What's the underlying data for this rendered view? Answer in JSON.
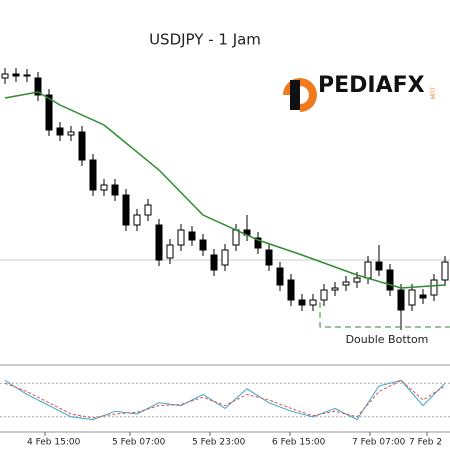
{
  "chart_data": {
    "type": "candlestick",
    "title": "USDJPY - 1 Jam",
    "brand": "PEDIAFX",
    "brand_suffix": ".COM",
    "annotation": "Double Bottom",
    "annotation_level": 38,
    "price_line": 105,
    "x_labels": [
      "4 Feb 15:00",
      "5 Feb 07:00",
      "5 Feb 23:00",
      "6 Feb 15:00",
      "7 Feb 07:00",
      "7 Feb 2"
    ],
    "ylim": [
      0,
      365
    ],
    "open": [
      287,
      291,
      289,
      287,
      270,
      237,
      230,
      233,
      205,
      175,
      180,
      170,
      140,
      150,
      140,
      107,
      120,
      133,
      125,
      110,
      100,
      120,
      135,
      127,
      115,
      97,
      85,
      65,
      60,
      65,
      75,
      80,
      83,
      87,
      103,
      95,
      75,
      60,
      70,
      70,
      85
    ],
    "close": [
      291,
      289,
      290,
      270,
      235,
      230,
      233,
      205,
      175,
      180,
      170,
      140,
      150,
      160,
      105,
      120,
      135,
      125,
      115,
      95,
      115,
      135,
      130,
      117,
      100,
      80,
      65,
      60,
      65,
      75,
      77,
      83,
      87,
      103,
      95,
      75,
      55,
      75,
      67,
      85,
      103
    ],
    "high": [
      297,
      297,
      296,
      293,
      276,
      243,
      239,
      239,
      211,
      186,
      186,
      176,
      156,
      166,
      146,
      126,
      141,
      139,
      131,
      116,
      121,
      141,
      150,
      133,
      121,
      103,
      91,
      71,
      71,
      81,
      83,
      89,
      93,
      109,
      120,
      101,
      81,
      81,
      76,
      91,
      109
    ],
    "low": [
      281,
      283,
      283,
      264,
      229,
      224,
      224,
      199,
      169,
      169,
      164,
      134,
      134,
      144,
      99,
      101,
      114,
      119,
      109,
      89,
      94,
      114,
      124,
      111,
      94,
      74,
      59,
      54,
      54,
      59,
      69,
      74,
      77,
      81,
      89,
      69,
      35,
      54,
      61,
      64,
      79
    ],
    "up_color": "#ffffff",
    "down_color": "#000000",
    "ma": {
      "color": "#2e8b2e",
      "x": [
        0,
        3,
        5,
        9,
        14,
        18,
        23,
        27,
        32,
        36,
        40
      ],
      "values": [
        267,
        273,
        260,
        240,
        195,
        150,
        125,
        110,
        90,
        77,
        80
      ]
    },
    "oscillator": {
      "ylim": [
        0,
        100
      ],
      "levels": [
        80,
        20
      ],
      "x": [
        0,
        2,
        4,
        6,
        8,
        10,
        12,
        14,
        16,
        18,
        20,
        22,
        24,
        26,
        28,
        30,
        32,
        34,
        36,
        38,
        40
      ],
      "series": [
        {
          "color": "#3aa6c9",
          "values": [
            85,
            60,
            40,
            20,
            15,
            30,
            25,
            45,
            40,
            60,
            35,
            70,
            45,
            30,
            20,
            35,
            15,
            75,
            85,
            40,
            80
          ]
        },
        {
          "color": "#d9534f",
          "values": [
            80,
            65,
            45,
            25,
            18,
            25,
            28,
            40,
            42,
            55,
            40,
            60,
            50,
            35,
            22,
            30,
            20,
            65,
            85,
            50,
            75
          ]
        }
      ]
    }
  }
}
